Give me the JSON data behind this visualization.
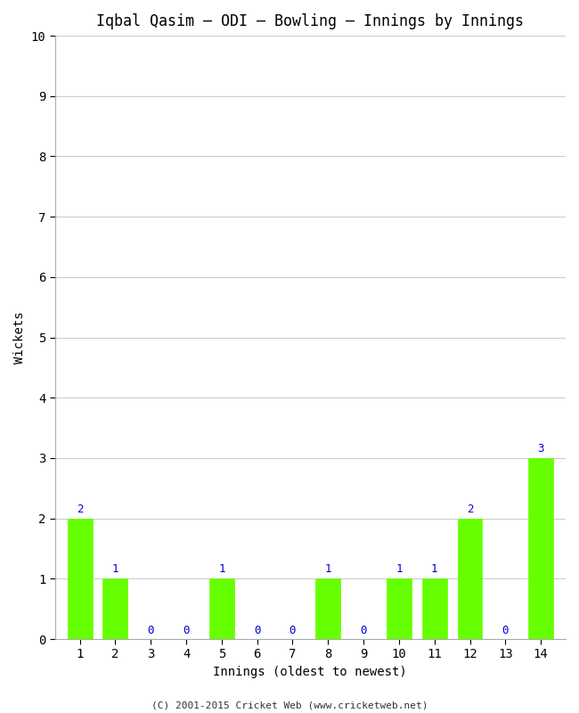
{
  "title": "Iqbal Qasim – ODI – Bowling – Innings by Innings",
  "xlabel": "Innings (oldest to newest)",
  "ylabel": "Wickets",
  "innings": [
    1,
    2,
    3,
    4,
    5,
    6,
    7,
    8,
    9,
    10,
    11,
    12,
    13,
    14
  ],
  "wickets": [
    2,
    1,
    0,
    0,
    1,
    0,
    0,
    1,
    0,
    1,
    1,
    2,
    0,
    3
  ],
  "bar_color": "#66ff00",
  "bar_edge_color": "#66ff00",
  "label_color": "#0000cc",
  "ylim": [
    0,
    10
  ],
  "yticks": [
    0,
    1,
    2,
    3,
    4,
    5,
    6,
    7,
    8,
    9,
    10
  ],
  "background_color": "#ffffff",
  "plot_bg_color": "#ffffff",
  "grid_color": "#cccccc",
  "spine_color": "#aaaaaa",
  "footer": "(C) 2001-2015 Cricket Web (www.cricketweb.net)",
  "title_fontsize": 12,
  "axis_fontsize": 10,
  "label_fontsize": 9,
  "footer_fontsize": 8,
  "bar_width": 0.7,
  "xlim": [
    0.3,
    14.7
  ]
}
